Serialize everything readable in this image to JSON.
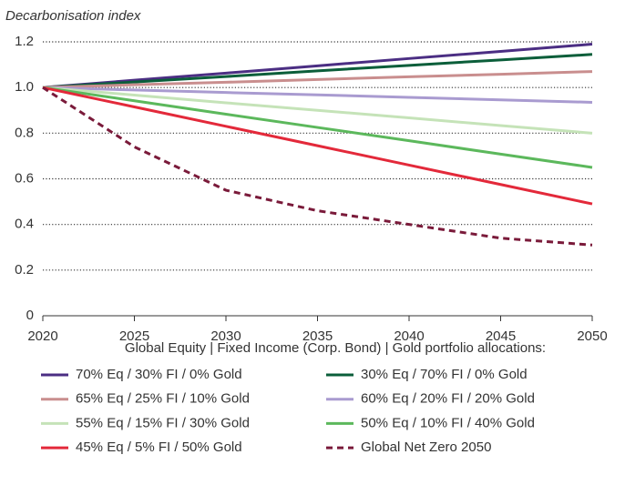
{
  "chart_data": {
    "type": "line",
    "y_axis_label": "Decarbonisation index",
    "legend_title": "Global Equity | Fixed Income (Corp. Bond) | Gold portfolio allocations:",
    "x": [
      2020,
      2025,
      2030,
      2035,
      2040,
      2045,
      2050
    ],
    "xlim": [
      2020,
      2050
    ],
    "xticks": [
      2020,
      2025,
      2030,
      2035,
      2040,
      2045,
      2050
    ],
    "ylim": [
      0,
      1.2
    ],
    "yticks": [
      0,
      0.2,
      0.4,
      0.6,
      0.8,
      {
        "value": 1,
        "label": "1.0"
      },
      1.2
    ],
    "grid": true,
    "legend": "bottom",
    "series": [
      {
        "name": "70% Eq / 30% FI / 0% Gold",
        "color": "#4b2e83",
        "values": [
          1,
          1.032,
          1.063,
          1.095,
          1.127,
          1.158,
          1.19
        ]
      },
      {
        "name": "30% Eq / 70% FI / 0% Gold",
        "color": "#0b5e3a",
        "values": [
          1,
          1.024,
          1.048,
          1.073,
          1.097,
          1.121,
          1.145
        ]
      },
      {
        "name": "65% Eq / 25% FI / 10% Gold",
        "color": "#c98e8e",
        "values": [
          1,
          1.012,
          1.023,
          1.035,
          1.047,
          1.058,
          1.07
        ]
      },
      {
        "name": "60% Eq / 20% FI / 20% Gold",
        "color": "#a99bd0",
        "values": [
          1,
          0.989,
          0.978,
          0.968,
          0.957,
          0.946,
          0.935
        ]
      },
      {
        "name": "55% Eq / 15% FI / 30% Gold",
        "color": "#c5e3b8",
        "values": [
          1,
          0.967,
          0.933,
          0.9,
          0.867,
          0.833,
          0.8
        ]
      },
      {
        "name": "50% Eq / 10% FI / 40% Gold",
        "color": "#5cb85c",
        "values": [
          1,
          0.942,
          0.883,
          0.825,
          0.767,
          0.708,
          0.65
        ]
      },
      {
        "name": "45% Eq / 5% FI / 50% Gold",
        "color": "#e3293a",
        "values": [
          1,
          0.915,
          0.83,
          0.745,
          0.66,
          0.575,
          0.49
        ]
      },
      {
        "name": "Global Net Zero 2050",
        "color": "#7a1a3a",
        "linestyle": "dashed",
        "values": [
          1,
          0.74,
          0.55,
          0.46,
          0.4,
          0.34,
          0.31
        ]
      }
    ]
  }
}
